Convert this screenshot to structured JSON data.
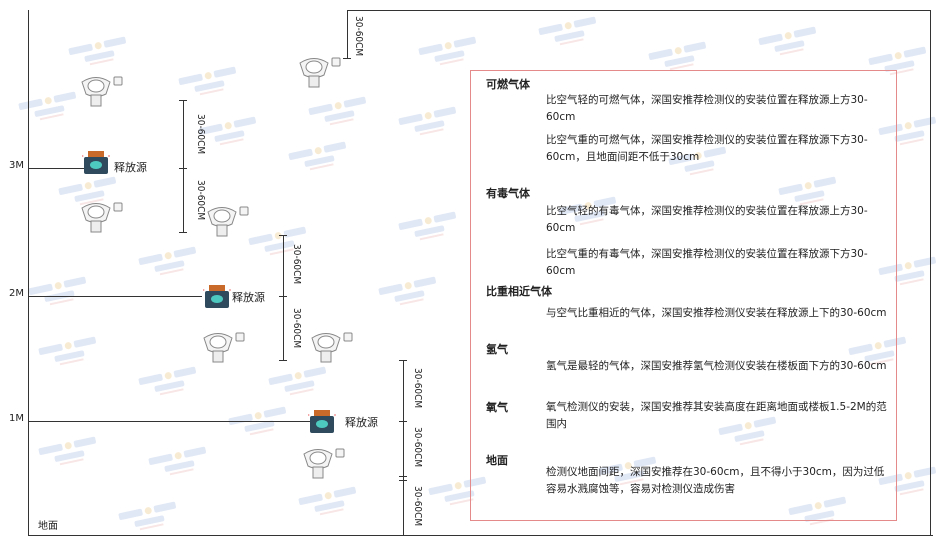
{
  "watermark": {
    "brand": "SINGOAN",
    "cn": "深国安"
  },
  "levels": {
    "m3": "3M",
    "m2": "2M",
    "m1": "1M",
    "ground": "地面"
  },
  "dimension_label": "30-60CM",
  "source_label": "释放源",
  "panel": {
    "sections": [
      {
        "title": "可燃气体",
        "paras": [
          "比空气轻的可燃气体，深国安推荐检测仪的安装位置在释放源上方30-60cm",
          "比空气重的可燃气体，深国安推荐检测仪的安装位置在释放源下方30-60cm，且地面间距不低于30cm"
        ]
      },
      {
        "title": "有毒气体",
        "paras": [
          "比空气轻的有毒气体，深国安推荐检测仪的安装位置在释放源上方30-60cm",
          "比空气重的有毒气体，深国安推荐检测仪的安装位置在释放源下方30-60cm"
        ]
      },
      {
        "title": "比重相近气体",
        "paras": [
          "与空气比重相近的气体，深国安推荐检测仪安装在释放源上下的30-60cm"
        ]
      },
      {
        "title": "氢气",
        "paras": [
          "氢气是最轻的气体，深国安推荐氢气检测仪安装在楼板面下方的30-60cm"
        ]
      },
      {
        "title": "氧气",
        "paras": [
          "氧气检测仪的安装，深国安推荐其安装高度在距离地面或楼板1.5-2M的范围内"
        ]
      },
      {
        "title": "地面",
        "paras": [
          "检测仪地面间距，深国安推荐在30-60cm，且不得小于30cm，因为过低容易水溅腐蚀等，容易对检测仪造成伤害"
        ]
      }
    ]
  },
  "colors": {
    "panel_border": "#e58a8a",
    "source_body": "#2f4a5c",
    "source_cap": "#c96a2a",
    "source_face": "#4ec9c0",
    "watermark": "#c9d6ee"
  }
}
